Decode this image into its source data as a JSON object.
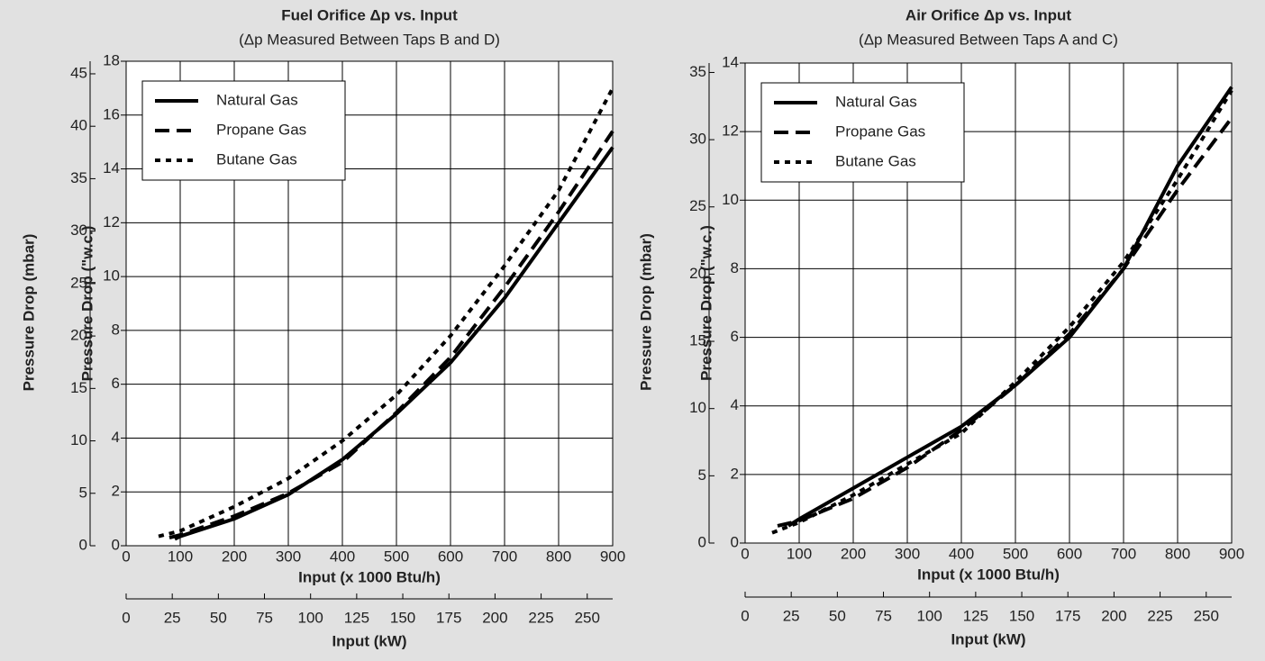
{
  "chart_data": [
    {
      "type": "line",
      "title": "Fuel Orifice Δp vs. Input",
      "subtitle": "(Δp Measured Between Taps B and D)",
      "x_label": "Input (x 1000 Btu/h)",
      "x2_label": "Input (kW)",
      "y_label": "Pressure Drop (\"w.c.)",
      "y2_label": "Pressure Drop (mbar)",
      "xlim": [
        0,
        900
      ],
      "xticks": [
        0,
        100,
        200,
        300,
        400,
        500,
        600,
        700,
        800,
        900
      ],
      "x2lim": [
        0,
        263.8
      ],
      "x2ticks": [
        0,
        25,
        50,
        75,
        100,
        125,
        150,
        175,
        200,
        225,
        250
      ],
      "ylim": [
        0,
        18
      ],
      "yticks": [
        0,
        2,
        4,
        6,
        8,
        10,
        12,
        14,
        16,
        18
      ],
      "y2lim": [
        0,
        46.2
      ],
      "y2ticks": [
        0,
        5,
        10,
        15,
        20,
        25,
        30,
        35,
        40,
        45
      ],
      "grid": true,
      "legend": "upper left",
      "series": [
        {
          "name": "Natural Gas",
          "color": "#000000",
          "style": "solid",
          "x": [
            90,
            100,
            200,
            300,
            400,
            500,
            600,
            700,
            800,
            900
          ],
          "values": [
            0.25,
            0.35,
            1.0,
            1.9,
            3.2,
            4.9,
            6.8,
            9.2,
            12.0,
            14.8
          ]
        },
        {
          "name": "Propane Gas",
          "color": "#000000",
          "style": "dashed",
          "x": [
            80,
            100,
            200,
            300,
            400,
            500,
            600,
            700,
            800,
            900
          ],
          "values": [
            0.3,
            0.4,
            1.1,
            1.95,
            3.1,
            4.95,
            7.0,
            9.6,
            12.4,
            15.4
          ]
        },
        {
          "name": "Butane Gas",
          "color": "#000000",
          "style": "dotted",
          "x": [
            60,
            100,
            200,
            300,
            400,
            500,
            600,
            700,
            800,
            900
          ],
          "values": [
            0.35,
            0.55,
            1.45,
            2.5,
            3.9,
            5.6,
            7.8,
            10.4,
            13.2,
            17.0
          ]
        }
      ]
    },
    {
      "type": "line",
      "title": "Air Orifice Δp vs. Input",
      "subtitle": "(Δp Measured Between Taps A and C)",
      "x_label": "Input (x 1000 Btu/h)",
      "x2_label": "Input (kW)",
      "y_label": "Pressure Drop (\"w.c.)",
      "y2_label": "Pressure Drop (mbar)",
      "xlim": [
        0,
        900
      ],
      "xticks": [
        0,
        100,
        200,
        300,
        400,
        500,
        600,
        700,
        800,
        900
      ],
      "x2lim": [
        0,
        263.8
      ],
      "x2ticks": [
        0,
        25,
        50,
        75,
        100,
        125,
        150,
        175,
        200,
        225,
        250
      ],
      "ylim": [
        0,
        14
      ],
      "yticks": [
        0,
        2,
        4,
        6,
        8,
        10,
        12,
        14
      ],
      "y2lim": [
        0,
        35.7
      ],
      "y2ticks": [
        0,
        5,
        10,
        15,
        20,
        25,
        30,
        35
      ],
      "grid": true,
      "legend": "upper left",
      "series": [
        {
          "name": "Natural Gas",
          "color": "#000000",
          "style": "solid",
          "x": [
            80,
            100,
            200,
            300,
            400,
            500,
            600,
            700,
            750,
            800,
            900
          ],
          "values": [
            0.5,
            0.7,
            1.6,
            2.5,
            3.4,
            4.6,
            6.0,
            8.0,
            9.5,
            11.0,
            13.3
          ]
        },
        {
          "name": "Propane Gas",
          "color": "#000000",
          "style": "dashed",
          "x": [
            60,
            100,
            200,
            300,
            400,
            500,
            600,
            700,
            800,
            900
          ],
          "values": [
            0.5,
            0.65,
            1.3,
            2.2,
            3.3,
            4.6,
            6.1,
            8.0,
            10.3,
            12.4
          ]
        },
        {
          "name": "Butane Gas",
          "color": "#000000",
          "style": "dotted",
          "x": [
            50,
            100,
            200,
            300,
            400,
            500,
            600,
            700,
            800,
            900
          ],
          "values": [
            0.3,
            0.6,
            1.4,
            2.3,
            3.2,
            4.7,
            6.3,
            8.2,
            10.6,
            13.2
          ]
        }
      ]
    }
  ]
}
